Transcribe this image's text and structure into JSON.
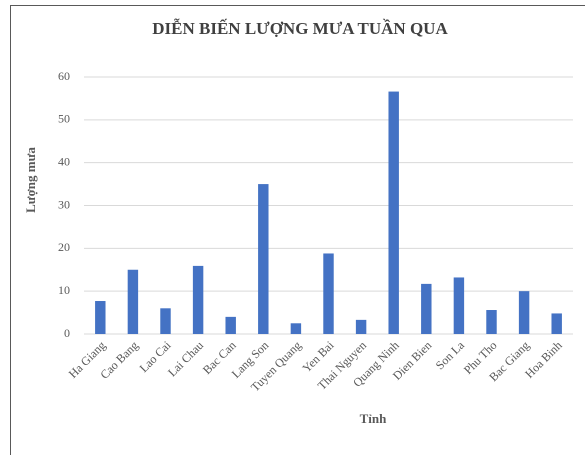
{
  "chart_data": {
    "type": "bar",
    "title": "DIỄN BIẾN LƯỢNG MƯA TUẦN QUA",
    "x_label": "Tỉnh",
    "y_label": "Lượng mưa",
    "categories": [
      "Ha Giang",
      "Cao Bang",
      "Lao Cai",
      "Lai Chau",
      "Bac Can",
      "Lang Son",
      "Tuyen Quang",
      "Yen Bai",
      "Thai Nguyen",
      "Quang Ninh",
      "Dien Bien",
      "Son La",
      "Phu Tho",
      "Bac Giang",
      "Hoa Binh"
    ],
    "values": [
      7.7,
      15,
      6,
      15.9,
      4,
      35,
      2.5,
      18.8,
      3.3,
      56.6,
      11.7,
      13.2,
      5.6,
      10,
      4.8
    ],
    "color": "#4472c4",
    "ylim": [
      0,
      60
    ],
    "yticks": [
      0,
      10,
      20,
      30,
      40,
      50,
      60
    ],
    "grid": true
  }
}
